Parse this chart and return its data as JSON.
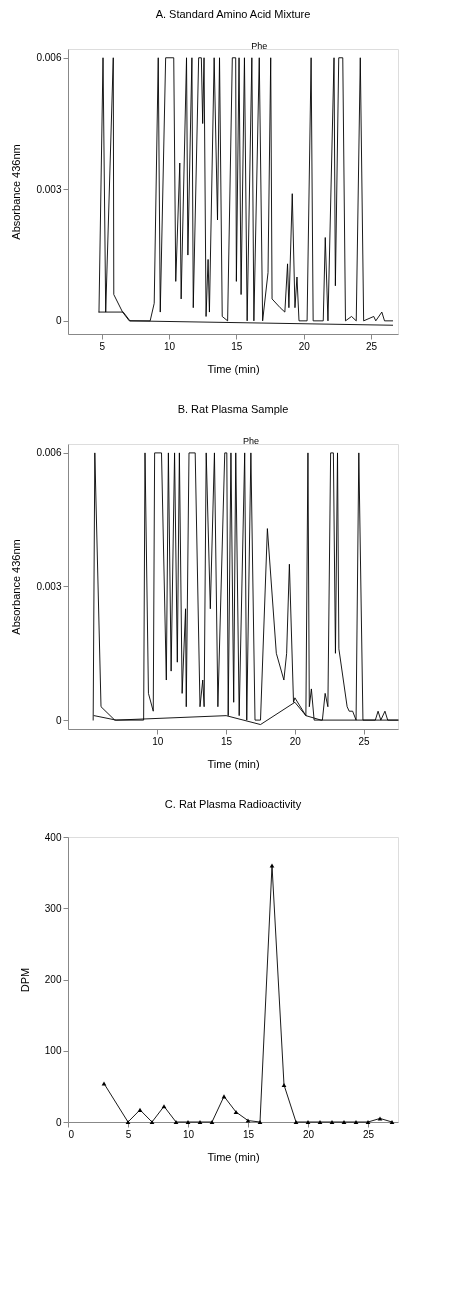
{
  "chart_data": [
    {
      "type": "line",
      "title": "A. Standard Amino Acid Mixture",
      "xlabel": "Time (min)",
      "ylabel": "Absorbance 436nm",
      "xlim": [
        2.5,
        27
      ],
      "xticks": [
        5,
        10,
        15,
        20,
        25
      ],
      "ylim": [
        -0.0003,
        0.0062
      ],
      "yticks": [
        0,
        0.003,
        0.006
      ],
      "grid": false,
      "marker": "none",
      "line_style": "solid",
      "annotations": [
        {
          "text": "Phe",
          "x": 16.7,
          "y": 0.006
        }
      ],
      "series": [
        {
          "color": "#000000",
          "x": [
            4.8,
            5.1,
            5.3,
            5.86,
            5.9,
            6.55,
            7.05,
            8.6,
            8.9,
            9.2,
            9.35,
            9.75,
            10.35,
            10.5,
            10.8,
            10.9,
            11.3,
            11.4,
            11.7,
            11.8,
            12.2,
            12.4,
            12.5,
            12.6,
            12.75,
            12.9,
            13.0,
            13.35,
            13.6,
            13.75,
            13.95,
            14.35,
            14.7,
            14.95,
            15.0,
            15.2,
            15.35,
            15.6,
            15.8,
            16.15,
            16.3,
            16.7,
            16.95,
            17.35,
            17.55,
            17.65,
            18.25,
            18.6,
            18.8,
            18.9,
            19.15,
            19.35,
            19.5,
            19.65,
            20.25,
            20.55,
            20.7,
            21.45,
            21.6,
            21.8,
            22.25,
            22.35,
            22.6,
            22.9,
            23.1,
            23.55,
            23.9,
            24.2,
            24.45,
            25.2,
            25.35,
            25.8,
            26.0,
            26.6
          ],
          "values": [
            0.0002,
            0.006,
            0.0002,
            0.006,
            0.0006,
            0.0002,
            0,
            0,
            0.0004,
            0.006,
            0.0002,
            0.006,
            0.006,
            0.0009,
            0.0036,
            0.0005,
            0.006,
            0.0015,
            0.006,
            0.0003,
            0.006,
            0.006,
            0.0045,
            0.006,
            0.0001,
            0.0014,
            0.0002,
            0.006,
            0.0023,
            0.006,
            0.0001,
            0,
            0.006,
            0.006,
            0.0009,
            0.006,
            0.0006,
            0.006,
            0,
            0.006,
            0,
            0.006,
            0,
            0.0011,
            0.006,
            0.0005,
            0.0003,
            0.0002,
            0.0013,
            0.0003,
            0.0029,
            0.0003,
            0.001,
            0,
            0,
            0.006,
            0,
            0,
            0.0019,
            0,
            0.006,
            0.0008,
            0.006,
            0.006,
            0,
            0.0001,
            0,
            0.006,
            0,
            0.0001,
            0,
            0.0002,
            0,
            0
          ]
        },
        {
          "color": "#000000",
          "x": [
            4.8,
            6.6,
            7.1,
            26.6
          ],
          "values": [
            0.0002,
            0.0002,
            0,
            -0.0001
          ]
        }
      ]
    },
    {
      "type": "line",
      "title": "B. Rat Plasma Sample",
      "xlabel": "Time (min)",
      "ylabel": "Absorbance 436nm",
      "xlim": [
        3.5,
        27.5
      ],
      "xticks": [
        10,
        15,
        20,
        25
      ],
      "ylim": [
        -0.0002,
        0.0062
      ],
      "yticks": [
        0,
        0.003,
        0.006
      ],
      "grid": false,
      "marker": "none",
      "line_style": "solid",
      "annotations": [
        {
          "text": "Phe",
          "x": 16.8,
          "y": 0.006
        }
      ],
      "series": [
        {
          "color": "#000000",
          "x": [
            5.33,
            5.45,
            5.9,
            6.9,
            9.0,
            9.1,
            9.35,
            9.7,
            9.8,
            10.3,
            10.65,
            10.8,
            11.0,
            11.25,
            11.45,
            11.6,
            11.8,
            12.05,
            12.1,
            12.3,
            12.75,
            13.1,
            13.3,
            13.4,
            13.55,
            13.85,
            14.15,
            14.4,
            14.9,
            15.05,
            15.15,
            15.35,
            15.55,
            15.7,
            15.95,
            16.35,
            16.5,
            16.8,
            17.1,
            17.5,
            18.0,
            18.65,
            19.2,
            19.4,
            19.6,
            19.9,
            20.0,
            20.8,
            20.95,
            21.05,
            21.2,
            21.4,
            22.0,
            22.2,
            22.4,
            22.6,
            22.8,
            22.95,
            23.1,
            23.2,
            23.8,
            23.95,
            24.2,
            24.45,
            24.65,
            24.95,
            25.85,
            26.05,
            26.25,
            26.55,
            26.75,
            27.5
          ],
          "values": [
            0,
            0.006,
            0.0003,
            0,
            0,
            0.006,
            0.0006,
            0.0002,
            0.006,
            0.006,
            0.0009,
            0.006,
            0.0011,
            0.006,
            0.0013,
            0.006,
            0.0006,
            0.0025,
            0.0003,
            0.006,
            0.006,
            0.0003,
            0.0009,
            0.0003,
            0.006,
            0.0025,
            0.006,
            0.0003,
            0.006,
            0.006,
            0.0001,
            0.006,
            0.0004,
            0.006,
            0.0001,
            0.006,
            0,
            0.006,
            0,
            0,
            0.0043,
            0.0015,
            0.0009,
            0.0015,
            0.0035,
            0.0004,
            0.0005,
            0.0001,
            0.006,
            0.0003,
            0.0007,
            0,
            0,
            0.0006,
            0.0003,
            0.006,
            0.006,
            0.0015,
            0.006,
            0.0016,
            0.0003,
            0.0002,
            0.0002,
            0,
            0.006,
            0,
            0,
            0.0002,
            0,
            0.0002,
            0,
            0
          ]
        },
        {
          "color": "#000000",
          "x": [
            5.4,
            7.0,
            15.0,
            17.5,
            20.0,
            20.8,
            21.9,
            27.5
          ],
          "values": [
            0.0001,
            0,
            0.0001,
            -0.0001,
            0.0004,
            0.0001,
            0,
            0
          ]
        }
      ]
    },
    {
      "type": "line",
      "title": "C. Rat Plasma Radioactivity",
      "xlabel": "Time (min)",
      "ylabel": "DPM",
      "xlim": [
        0,
        27.5
      ],
      "xticks": [
        0,
        5,
        10,
        15,
        20,
        25
      ],
      "ylim": [
        0,
        400
      ],
      "yticks": [
        0,
        100,
        200,
        300,
        400
      ],
      "grid": false,
      "marker": "triangle",
      "line_style": "solid",
      "series": [
        {
          "color": "#000000",
          "x": [
            3,
            5,
            6,
            7,
            8,
            9,
            10,
            11,
            12,
            13,
            14,
            15,
            16,
            17,
            18,
            19,
            20,
            21,
            22,
            23,
            24,
            25,
            26,
            27
          ],
          "values": [
            54,
            0,
            17,
            0,
            22,
            0,
            0,
            0,
            0,
            36,
            14,
            2,
            0,
            360,
            52,
            0,
            0,
            0,
            0,
            0,
            0,
            0,
            5,
            0
          ]
        }
      ]
    }
  ]
}
